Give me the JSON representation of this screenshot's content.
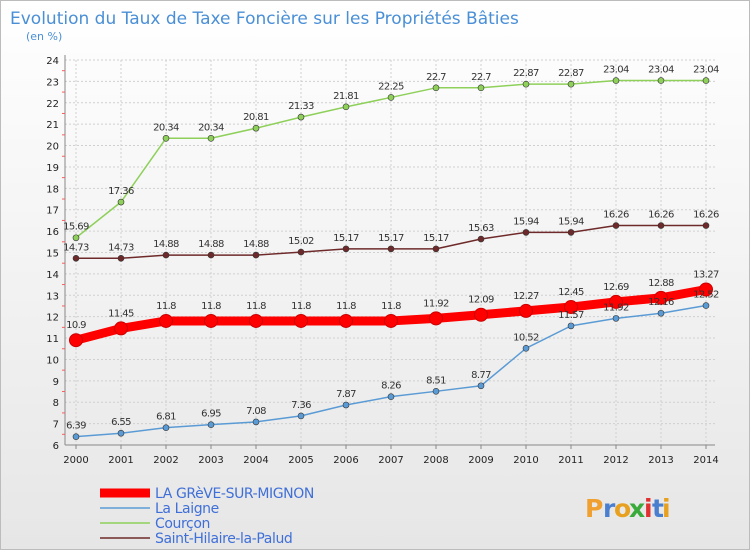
{
  "chart_data": {
    "type": "line",
    "title": "Evolution du Taux de Taxe Foncière sur les Propriétés Bâties",
    "subtitle": "(en %)",
    "xlabel": "",
    "ylabel": "",
    "x": [
      2000,
      2001,
      2002,
      2003,
      2004,
      2005,
      2006,
      2007,
      2008,
      2009,
      2010,
      2011,
      2012,
      2013,
      2014
    ],
    "ylim": [
      6,
      24
    ],
    "yticks": [
      6,
      7,
      8,
      9,
      10,
      11,
      12,
      13,
      14,
      15,
      16,
      17,
      18,
      19,
      20,
      21,
      22,
      23,
      24
    ],
    "grid": true,
    "legend_position": "bottom-left",
    "series": [
      {
        "name": "La Laigne",
        "color": "#5b9bd5",
        "values": [
          6.39,
          6.55,
          6.81,
          6.95,
          7.08,
          7.36,
          7.87,
          8.26,
          8.51,
          8.77,
          10.52,
          11.57,
          11.92,
          12.16,
          12.52
        ],
        "labels": [
          "6.39",
          "6.55",
          "6.81",
          "6.95",
          "7.08",
          "7.36",
          "7.87",
          "8.26",
          "8.51",
          "8.77",
          "10.52",
          "11.57",
          "11.92",
          "12.16",
          "12.52"
        ]
      },
      {
        "name": "Courçon",
        "color": "#8ed05a",
        "values": [
          15.69,
          17.36,
          20.34,
          20.34,
          20.81,
          21.33,
          21.81,
          22.25,
          22.7,
          22.7,
          22.87,
          22.87,
          23.04,
          23.04,
          23.04
        ],
        "labels": [
          "15.69",
          "17.36",
          "20.34",
          "20.34",
          "20.81",
          "21.33",
          "21.81",
          "22.25",
          "22.7",
          "22.7",
          "22.87",
          "22.87",
          "23.04",
          "23.04",
          "23.04"
        ]
      },
      {
        "name": "Saint-Hilaire-la-Palud",
        "color": "#6e2a2a",
        "values": [
          14.73,
          14.73,
          14.88,
          14.88,
          14.88,
          15.02,
          15.17,
          15.17,
          15.17,
          15.63,
          15.94,
          15.94,
          16.26,
          16.26,
          16.26
        ],
        "labels": [
          "14.73",
          "14.73",
          "14.88",
          "14.88",
          "14.88",
          "15.02",
          "15.17",
          "15.17",
          "15.17",
          "15.63",
          "15.94",
          "15.94",
          "16.26",
          "16.26",
          "16.26"
        ]
      },
      {
        "name": "LA GRèVE-SUR-MIGNON",
        "color": "#ff0000",
        "values": [
          10.9,
          11.45,
          11.8,
          11.8,
          11.8,
          11.8,
          11.8,
          11.8,
          11.92,
          12.09,
          12.27,
          12.45,
          12.69,
          12.88,
          13.27
        ],
        "labels": [
          "10.9",
          "11.45",
          "11.8",
          "11.8",
          "11.8",
          "11.8",
          "11.8",
          "11.8",
          "11.92",
          "12.09",
          "12.27",
          "12.45",
          "12.69",
          "12.88",
          "13.27"
        ],
        "highlight": true
      }
    ],
    "legend": [
      {
        "name": "LA GRèVE-SUR-MIGNON",
        "color": "#ff0000",
        "thick": true
      },
      {
        "name": "La Laigne",
        "color": "#5b9bd5",
        "thick": false
      },
      {
        "name": "Courçon",
        "color": "#8ed05a",
        "thick": false
      },
      {
        "name": "Saint-Hilaire-la-Palud",
        "color": "#6e2a2a",
        "thick": false
      }
    ]
  },
  "logo": {
    "letters": [
      "P",
      "r",
      "o",
      "x",
      "i",
      "t",
      "i"
    ],
    "colors": [
      "#f0a030",
      "#4a7fd0",
      "#e8a020",
      "#3aaa3a",
      "#e03030",
      "#4a7fd0",
      "#e8a020"
    ]
  }
}
